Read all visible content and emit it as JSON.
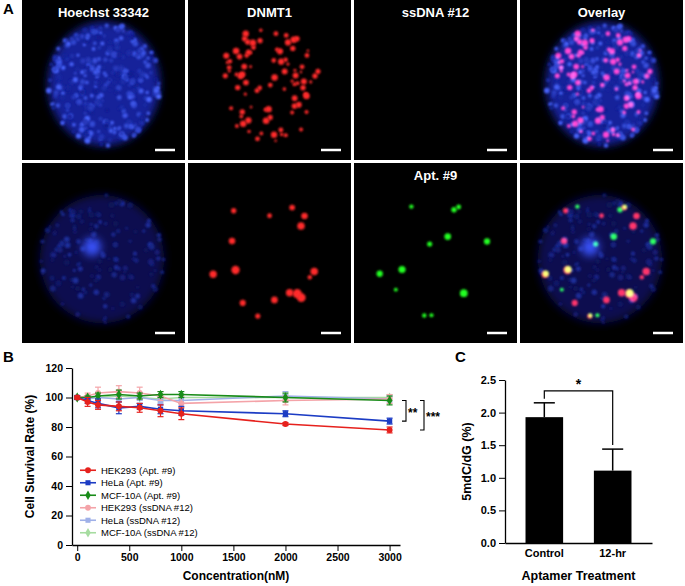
{
  "image_panel": {
    "title": "A",
    "columns": [
      "Hoechst 33342",
      "DNMT1",
      "ssDNA #12",
      "Overlay"
    ],
    "second_row_labels": [
      null,
      null,
      "Apt. #9",
      null
    ]
  },
  "chart_data": [
    {
      "type": "line",
      "title": "B",
      "xlabel": "Concentration(nM)",
      "ylabel": "Cell Survival Rate (%)",
      "x": [
        0,
        100,
        200,
        400,
        600,
        800,
        1000,
        2000,
        3000
      ],
      "xlim": [
        -50,
        3100
      ],
      "xticks": [
        0,
        500,
        1000,
        1500,
        2000,
        2500,
        3000
      ],
      "ylim": [
        0,
        120
      ],
      "yticks": [
        0,
        20,
        40,
        60,
        80,
        100,
        120
      ],
      "grid": false,
      "legend": "lower left",
      "series": [
        {
          "name": "HEK293 (Apt. #9)",
          "color": "#e6211d",
          "marker": "circle",
          "line_style": "solid",
          "values": [
            100,
            97,
            95,
            94,
            93,
            91,
            89,
            82,
            78
          ],
          "errors": [
            1,
            3,
            3,
            3,
            3,
            4,
            4,
            1,
            2
          ]
        },
        {
          "name": "HeLa (Apt. #9)",
          "color": "#1c3cc4",
          "marker": "square",
          "line_style": "solid",
          "values": [
            100,
            98,
            96,
            93,
            94,
            92,
            91,
            89,
            84
          ],
          "errors": [
            1,
            2,
            3,
            4,
            2,
            3,
            3,
            2,
            2
          ]
        },
        {
          "name": "MCF-10A (Apt. #9)",
          "color": "#198c19",
          "marker": "diamond",
          "line_style": "solid",
          "values": [
            100,
            100,
            101,
            102,
            101,
            102,
            102,
            100,
            98
          ],
          "errors": [
            1,
            1,
            2,
            3,
            2,
            2,
            2,
            3,
            3
          ]
        },
        {
          "name": "HEK293 (ssDNA #12)",
          "color": "#f4a3a8",
          "marker": "circle",
          "line_style": "solid",
          "values": [
            100,
            101,
            103,
            104,
            103,
            101,
            96,
            98,
            99
          ],
          "errors": [
            1,
            2,
            4,
            4,
            4,
            3,
            5,
            3,
            3
          ]
        },
        {
          "name": "HeLa (ssDNA #12)",
          "color": "#9fb0e8",
          "marker": "square",
          "line_style": "solid",
          "values": [
            100,
            99,
            100,
            99,
            100,
            98,
            98,
            101,
            99
          ],
          "errors": [
            1,
            1,
            2,
            2,
            2,
            2,
            2,
            3,
            2
          ]
        },
        {
          "name": "MCF-10A (ssDNA #12)",
          "color": "#a6dca0",
          "marker": "diamond",
          "line_style": "solid",
          "values": [
            100,
            100,
            100,
            101,
            100,
            99,
            100,
            100,
            100
          ],
          "errors": [
            1,
            1,
            1,
            2,
            1,
            2,
            2,
            2,
            2
          ]
        }
      ],
      "annotations": [
        {
          "text": "**",
          "between": [
            "HeLa (Apt. #9)",
            "MCF-10A (Apt. #9)"
          ]
        },
        {
          "text": "***",
          "between": [
            "HEK293 (Apt. #9)",
            "MCF-10A (Apt. #9)"
          ]
        }
      ]
    },
    {
      "type": "bar",
      "title": "C",
      "xlabel": "Aptamer Treatment",
      "ylabel": "5mdC/dG (%)",
      "categories": [
        "Control",
        "12-hr"
      ],
      "values": [
        1.93,
        1.11
      ],
      "errors": [
        0.22,
        0.33
      ],
      "color": "#000000",
      "grid": false,
      "ylim": [
        0,
        2.5
      ],
      "yticks": [
        {
          "value": 0,
          "label": "0.0"
        },
        0.5,
        {
          "value": 1,
          "label": "1.0"
        },
        1.5,
        {
          "value": 2,
          "label": "2.0"
        },
        2.5
      ],
      "annotations": [
        {
          "text": "*",
          "between": [
            "Control",
            "12-hr"
          ]
        }
      ]
    }
  ]
}
